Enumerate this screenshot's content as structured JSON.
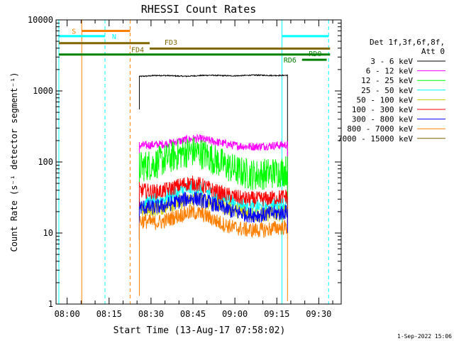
{
  "chart_data": {
    "type": "line",
    "title": "RHESSI Count Rates",
    "xlabel": "Start Time (13-Aug-17 07:58:02)",
    "ylabel": "Count Rate (s⁻¹ detector segment⁻¹)",
    "footer": "1-Sep-2022 15:06",
    "x_unit": "minutes since 07:58:02",
    "xlim": [
      -2.0,
      100.0
    ],
    "ylim": [
      1,
      10000
    ],
    "yscale": "log",
    "x_ticks": [
      {
        "label": "08:00",
        "x": 1.97
      },
      {
        "label": "08:15",
        "x": 16.97
      },
      {
        "label": "08:30",
        "x": 31.97
      },
      {
        "label": "08:45",
        "x": 46.97
      },
      {
        "label": "09:00",
        "x": 61.97
      },
      {
        "label": "09:15",
        "x": 76.97
      },
      {
        "label": "09:30",
        "x": 91.97
      }
    ],
    "y_ticks": [
      {
        "label": "1",
        "y": 1
      },
      {
        "label": "10",
        "y": 10
      },
      {
        "label": "100",
        "y": 100
      },
      {
        "label": "1000",
        "y": 1000
      },
      {
        "label": "10000",
        "y": 10000
      }
    ],
    "legend": {
      "position": "right",
      "header": [
        "Det 1f,3f,6f,8f,",
        "Att 0"
      ]
    },
    "data_start_x": 27.8,
    "data_end_x": 80.8,
    "series": [
      {
        "name": "3 - 6 keV",
        "color": "#000000",
        "values": [
          1600,
          1620,
          1650,
          1650,
          1640,
          1620,
          1610,
          1630,
          1650,
          1660,
          1650,
          1640,
          1630,
          1640,
          1660,
          1670,
          1660,
          1650,
          1650,
          1660
        ]
      },
      {
        "name": "6 - 12 keV",
        "color": "#ff00ff",
        "values": [
          170,
          172,
          175,
          178,
          185,
          195,
          205,
          212,
          210,
          200,
          190,
          180,
          172,
          168,
          165,
          165,
          168,
          170,
          172,
          175
        ]
      },
      {
        "name": "12 - 25 keV",
        "color": "#00ff00",
        "values": [
          85,
          90,
          95,
          105,
          115,
          128,
          138,
          140,
          132,
          118,
          102,
          90,
          80,
          72,
          68,
          66,
          68,
          70,
          73,
          76
        ]
      },
      {
        "name": "25 - 50 keV",
        "color": "#00ffff",
        "values": [
          26,
          27,
          28,
          30,
          33,
          37,
          41,
          43,
          41,
          37,
          33,
          30,
          27,
          25,
          24,
          23,
          23,
          24,
          25,
          26
        ]
      },
      {
        "name": "50 - 100 keV",
        "color": "#cccc00",
        "values": [
          21,
          21,
          22,
          23,
          25,
          27,
          29,
          30,
          29,
          27,
          25,
          23,
          21,
          20,
          19,
          18,
          18,
          19,
          19,
          20
        ]
      },
      {
        "name": "100 - 300 keV",
        "color": "#ff0000",
        "values": [
          40,
          39,
          38,
          39,
          42,
          46,
          50,
          50,
          47,
          42,
          38,
          35,
          33,
          31,
          30,
          30,
          30,
          31,
          32,
          33
        ]
      },
      {
        "name": "300 - 800 keV",
        "color": "#0000ff",
        "values": [
          23,
          23,
          23,
          24,
          26,
          28,
          30,
          31,
          29,
          27,
          24,
          22,
          20,
          19,
          18,
          18,
          18,
          19,
          19,
          20
        ]
      },
      {
        "name": "800 - 7000 keV",
        "color": "#ff8000",
        "values": [
          15,
          14.5,
          14,
          14.5,
          16,
          17.5,
          19,
          19.5,
          18.5,
          16.5,
          14.5,
          13,
          12,
          11.5,
          11,
          11,
          11,
          11.5,
          12,
          12
        ]
      },
      {
        "name": "7000 - 15000 keV",
        "color": "#806600",
        "values": []
      }
    ],
    "attenuator_and_mode_bars": [
      {
        "label": "S",
        "color": "#ff8000",
        "x_start": 7.2,
        "x_end": 24.5,
        "y": 7000
      },
      {
        "label": "N",
        "color": "#00ffff",
        "x_start": -1.0,
        "x_end": 15.5,
        "y": 5900
      },
      {
        "label": "",
        "color": "#00ffff",
        "x_start": 78.8,
        "x_end": 95.5,
        "y": 5900
      },
      {
        "label": "FD3",
        "color": "#806600",
        "x_start": -1.0,
        "x_end": 31.5,
        "y": 4700
      },
      {
        "label": "FD4",
        "color": "#806600",
        "x_start": 31.5,
        "x_end": 96.0,
        "y": 3950
      },
      {
        "label": "RD0",
        "color": "#008000",
        "x_start": -1.0,
        "x_end": 96.0,
        "y": 3250
      },
      {
        "label": "RD6",
        "color": "#008000",
        "x_start": 86.0,
        "x_end": 94.8,
        "y": 2750
      }
    ],
    "vertical_markers": [
      {
        "color": "#00ffff",
        "style": "solid",
        "x": -1.0
      },
      {
        "color": "#ff8000",
        "style": "solid",
        "x": 7.2
      },
      {
        "color": "#00ffff",
        "style": "dashed",
        "x": 15.5
      },
      {
        "color": "#ff8000",
        "style": "dashed",
        "x": 24.5
      },
      {
        "color": "#00ffff",
        "style": "solid",
        "x": 78.8
      },
      {
        "color": "#00ffff",
        "style": "dashed",
        "x": 95.5
      }
    ]
  }
}
